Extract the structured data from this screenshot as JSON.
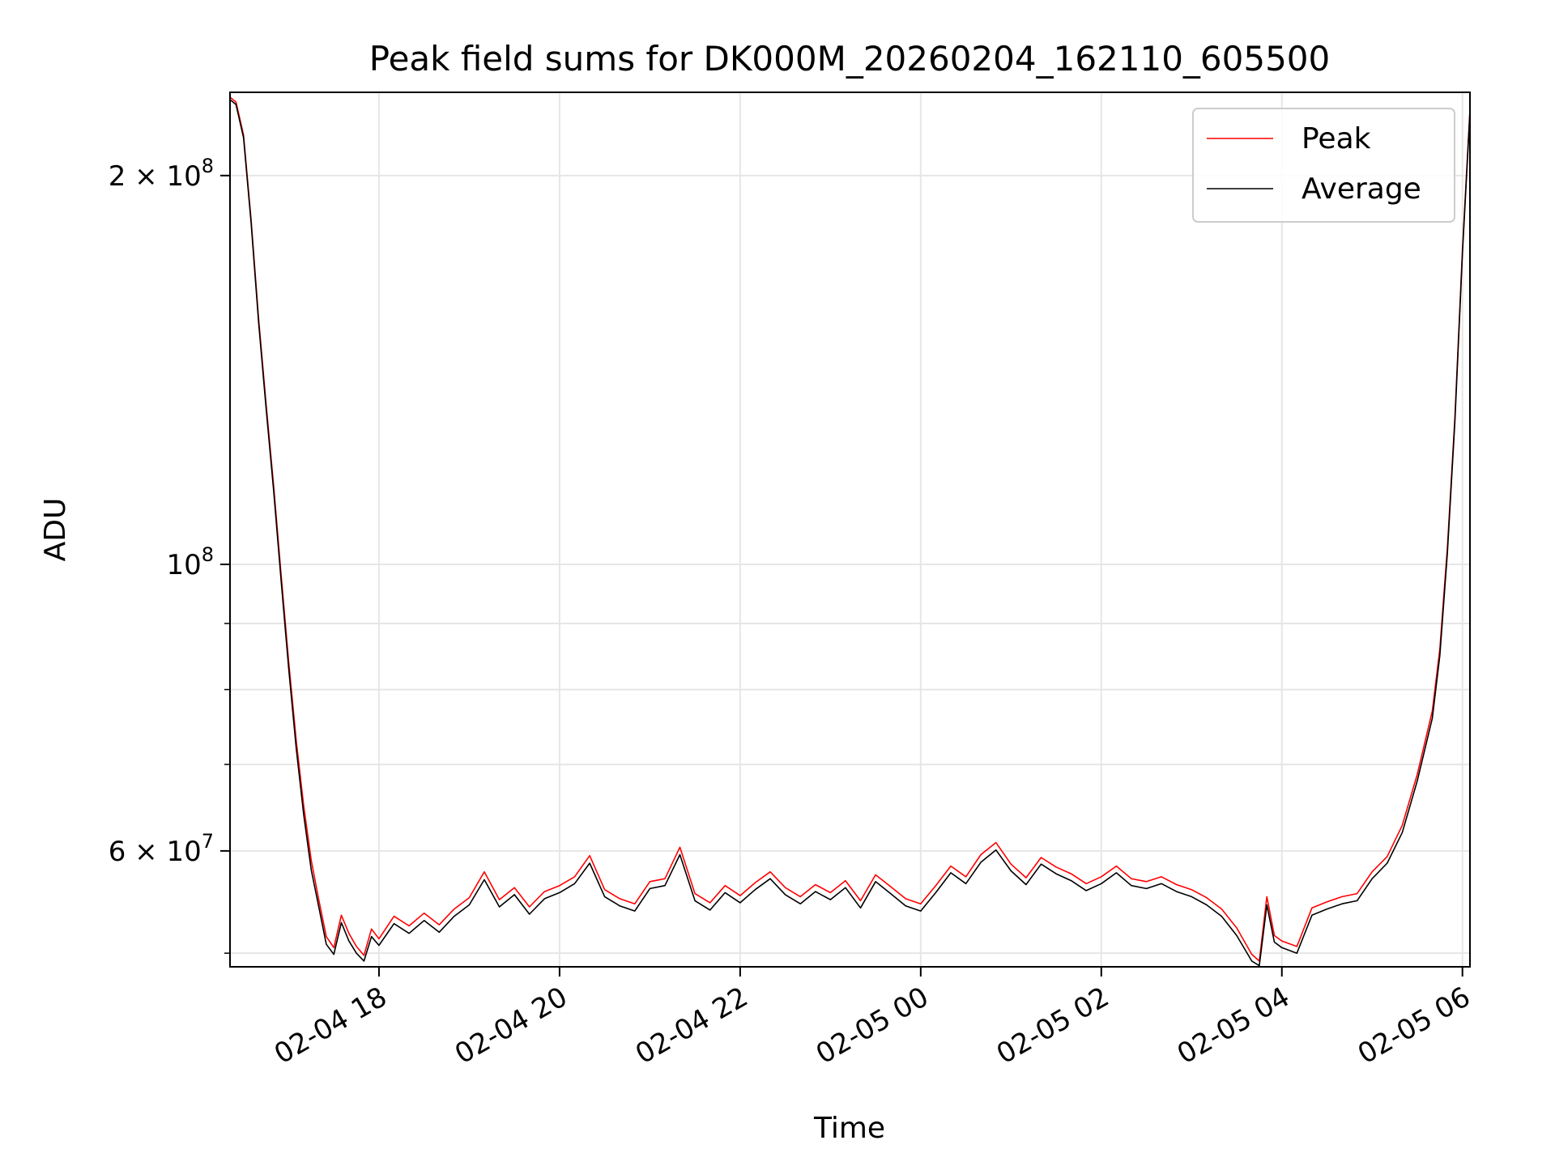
{
  "chart_data": {
    "type": "line",
    "title": "Peak field sums for DK000M_20260204_162110_605500",
    "xlabel": "Time",
    "ylabel": "ADU",
    "yscale": "log",
    "xlim": [
      "2026-02-04T16:21",
      "2026-02-05T06:05"
    ],
    "ylim": [
      48800000,
      232000000
    ],
    "grid": true,
    "legend_position": "upper right",
    "x_ticks": [
      {
        "t": "2026-02-04T18:00",
        "label": "02-04 18"
      },
      {
        "t": "2026-02-04T20:00",
        "label": "02-04 20"
      },
      {
        "t": "2026-02-04T22:00",
        "label": "02-04 22"
      },
      {
        "t": "2026-02-05T00:00",
        "label": "02-05 00"
      },
      {
        "t": "2026-02-05T02:00",
        "label": "02-05 02"
      },
      {
        "t": "2026-02-05T04:00",
        "label": "02-05 04"
      },
      {
        "t": "2026-02-05T06:00",
        "label": "02-05 06"
      }
    ],
    "y_ticks": [
      {
        "value": 200000000,
        "base": "2 × 10",
        "exp": "8"
      },
      {
        "value": 100000000,
        "base": "10",
        "exp": "8"
      },
      {
        "value": 60000000,
        "base": "6 × 10",
        "exp": "7"
      }
    ],
    "y_minor_ticks": [
      50000000,
      70000000,
      80000000,
      90000000
    ],
    "colors": {
      "peak": "#ff0000",
      "average": "#000000"
    },
    "series": [
      {
        "name": "Peak",
        "color": "#ff0000",
        "points": [
          [
            "2026-02-04T16:21",
            230000000
          ],
          [
            "2026-02-04T16:25",
            228000000
          ],
          [
            "2026-02-04T16:30",
            215000000
          ],
          [
            "2026-02-04T16:35",
            185000000
          ],
          [
            "2026-02-04T16:40",
            155000000
          ],
          [
            "2026-02-04T16:45",
            133000000
          ],
          [
            "2026-02-04T16:50",
            115000000
          ],
          [
            "2026-02-04T16:55",
            98000000
          ],
          [
            "2026-02-04T17:00",
            84000000
          ],
          [
            "2026-02-04T17:05",
            73000000
          ],
          [
            "2026-02-04T17:10",
            65000000
          ],
          [
            "2026-02-04T17:15",
            59000000
          ],
          [
            "2026-02-04T17:20",
            55000000
          ],
          [
            "2026-02-04T17:25",
            51500000
          ],
          [
            "2026-02-04T17:30",
            50500000
          ],
          [
            "2026-02-04T17:35",
            53500000
          ],
          [
            "2026-02-04T17:40",
            51800000
          ],
          [
            "2026-02-04T17:45",
            50600000
          ],
          [
            "2026-02-04T17:50",
            49800000
          ],
          [
            "2026-02-04T17:55",
            52200000
          ],
          [
            "2026-02-04T18:00",
            51300000
          ],
          [
            "2026-02-04T18:10",
            53400000
          ],
          [
            "2026-02-04T18:20",
            52500000
          ],
          [
            "2026-02-04T18:30",
            53700000
          ],
          [
            "2026-02-04T18:40",
            52600000
          ],
          [
            "2026-02-04T18:50",
            54100000
          ],
          [
            "2026-02-04T19:00",
            55200000
          ],
          [
            "2026-02-04T19:10",
            57800000
          ],
          [
            "2026-02-04T19:20",
            55000000
          ],
          [
            "2026-02-04T19:30",
            56200000
          ],
          [
            "2026-02-04T19:40",
            54300000
          ],
          [
            "2026-02-04T19:50",
            55800000
          ],
          [
            "2026-02-04T20:00",
            56400000
          ],
          [
            "2026-02-04T20:10",
            57300000
          ],
          [
            "2026-02-04T20:20",
            59500000
          ],
          [
            "2026-02-04T20:30",
            56000000
          ],
          [
            "2026-02-04T20:40",
            55100000
          ],
          [
            "2026-02-04T20:50",
            54600000
          ],
          [
            "2026-02-04T21:00",
            56800000
          ],
          [
            "2026-02-04T21:10",
            57100000
          ],
          [
            "2026-02-04T21:20",
            60400000
          ],
          [
            "2026-02-04T21:30",
            55600000
          ],
          [
            "2026-02-04T21:40",
            54700000
          ],
          [
            "2026-02-04T21:50",
            56400000
          ],
          [
            "2026-02-04T22:00",
            55400000
          ],
          [
            "2026-02-04T22:10",
            56700000
          ],
          [
            "2026-02-04T22:20",
            57800000
          ],
          [
            "2026-02-04T22:30",
            56200000
          ],
          [
            "2026-02-04T22:40",
            55300000
          ],
          [
            "2026-02-04T22:50",
            56500000
          ],
          [
            "2026-02-04T23:00",
            55700000
          ],
          [
            "2026-02-04T23:10",
            56900000
          ],
          [
            "2026-02-04T23:20",
            54900000
          ],
          [
            "2026-02-04T23:30",
            57500000
          ],
          [
            "2026-02-04T23:40",
            56300000
          ],
          [
            "2026-02-04T23:50",
            55100000
          ],
          [
            "2026-02-05T00:00",
            54600000
          ],
          [
            "2026-02-05T00:10",
            56400000
          ],
          [
            "2026-02-05T00:20",
            58400000
          ],
          [
            "2026-02-05T00:30",
            57300000
          ],
          [
            "2026-02-05T00:40",
            59600000
          ],
          [
            "2026-02-05T00:50",
            60900000
          ],
          [
            "2026-02-05T01:00",
            58600000
          ],
          [
            "2026-02-05T01:10",
            57200000
          ],
          [
            "2026-02-05T01:20",
            59300000
          ],
          [
            "2026-02-05T01:30",
            58300000
          ],
          [
            "2026-02-05T01:40",
            57600000
          ],
          [
            "2026-02-05T01:50",
            56600000
          ],
          [
            "2026-02-05T02:00",
            57300000
          ],
          [
            "2026-02-05T02:10",
            58400000
          ],
          [
            "2026-02-05T02:20",
            57100000
          ],
          [
            "2026-02-05T02:30",
            56800000
          ],
          [
            "2026-02-05T02:40",
            57300000
          ],
          [
            "2026-02-05T02:50",
            56500000
          ],
          [
            "2026-02-05T03:00",
            56000000
          ],
          [
            "2026-02-05T03:10",
            55200000
          ],
          [
            "2026-02-05T03:20",
            54100000
          ],
          [
            "2026-02-05T03:30",
            52300000
          ],
          [
            "2026-02-05T03:40",
            49900000
          ],
          [
            "2026-02-05T03:45",
            49300000
          ],
          [
            "2026-02-05T03:50",
            55300000
          ],
          [
            "2026-02-05T03:55",
            51600000
          ],
          [
            "2026-02-05T04:00",
            51100000
          ],
          [
            "2026-02-05T04:10",
            50600000
          ],
          [
            "2026-02-05T04:20",
            54200000
          ],
          [
            "2026-02-05T04:30",
            54800000
          ],
          [
            "2026-02-05T04:40",
            55300000
          ],
          [
            "2026-02-05T04:50",
            55600000
          ],
          [
            "2026-02-05T05:00",
            57800000
          ],
          [
            "2026-02-05T05:10",
            59400000
          ],
          [
            "2026-02-05T05:20",
            62800000
          ],
          [
            "2026-02-05T05:30",
            68800000
          ],
          [
            "2026-02-05T05:40",
            77000000
          ],
          [
            "2026-02-05T05:45",
            86000000
          ],
          [
            "2026-02-05T05:50",
            103000000
          ],
          [
            "2026-02-05T05:55",
            130000000
          ],
          [
            "2026-02-05T06:00",
            175000000
          ],
          [
            "2026-02-05T06:05",
            225000000
          ]
        ]
      },
      {
        "name": "Average",
        "color": "#000000",
        "points": [
          [
            "2026-02-04T16:21",
            229000000
          ],
          [
            "2026-02-04T16:25",
            227000000
          ],
          [
            "2026-02-04T16:30",
            214000000
          ],
          [
            "2026-02-04T16:35",
            184000000
          ],
          [
            "2026-02-04T16:40",
            154000000
          ],
          [
            "2026-02-04T16:45",
            132000000
          ],
          [
            "2026-02-04T16:50",
            114000000
          ],
          [
            "2026-02-04T16:55",
            97000000
          ],
          [
            "2026-02-04T17:00",
            83000000
          ],
          [
            "2026-02-04T17:05",
            72000000
          ],
          [
            "2026-02-04T17:10",
            64000000
          ],
          [
            "2026-02-04T17:15",
            58000000
          ],
          [
            "2026-02-04T17:20",
            54300000
          ],
          [
            "2026-02-04T17:25",
            50800000
          ],
          [
            "2026-02-04T17:30",
            49900000
          ],
          [
            "2026-02-04T17:35",
            52800000
          ],
          [
            "2026-02-04T17:40",
            51100000
          ],
          [
            "2026-02-04T17:45",
            50000000
          ],
          [
            "2026-02-04T17:50",
            49300000
          ],
          [
            "2026-02-04T17:55",
            51500000
          ],
          [
            "2026-02-04T18:00",
            50700000
          ],
          [
            "2026-02-04T18:10",
            52700000
          ],
          [
            "2026-02-04T18:20",
            51800000
          ],
          [
            "2026-02-04T18:30",
            53000000
          ],
          [
            "2026-02-04T18:40",
            51900000
          ],
          [
            "2026-02-04T18:50",
            53400000
          ],
          [
            "2026-02-04T19:00",
            54500000
          ],
          [
            "2026-02-04T19:10",
            57000000
          ],
          [
            "2026-02-04T19:20",
            54300000
          ],
          [
            "2026-02-04T19:30",
            55500000
          ],
          [
            "2026-02-04T19:40",
            53600000
          ],
          [
            "2026-02-04T19:50",
            55100000
          ],
          [
            "2026-02-04T20:00",
            55700000
          ],
          [
            "2026-02-04T20:10",
            56600000
          ],
          [
            "2026-02-04T20:20",
            58700000
          ],
          [
            "2026-02-04T20:30",
            55300000
          ],
          [
            "2026-02-04T20:40",
            54400000
          ],
          [
            "2026-02-04T20:50",
            53900000
          ],
          [
            "2026-02-04T21:00",
            56100000
          ],
          [
            "2026-02-04T21:10",
            56400000
          ],
          [
            "2026-02-04T21:20",
            59600000
          ],
          [
            "2026-02-04T21:30",
            54900000
          ],
          [
            "2026-02-04T21:40",
            54000000
          ],
          [
            "2026-02-04T21:50",
            55700000
          ],
          [
            "2026-02-04T22:00",
            54700000
          ],
          [
            "2026-02-04T22:10",
            56000000
          ],
          [
            "2026-02-04T22:20",
            57100000
          ],
          [
            "2026-02-04T22:30",
            55500000
          ],
          [
            "2026-02-04T22:40",
            54600000
          ],
          [
            "2026-02-04T22:50",
            55800000
          ],
          [
            "2026-02-04T23:00",
            55000000
          ],
          [
            "2026-02-04T23:10",
            56200000
          ],
          [
            "2026-02-04T23:20",
            54200000
          ],
          [
            "2026-02-04T23:30",
            56800000
          ],
          [
            "2026-02-04T23:40",
            55600000
          ],
          [
            "2026-02-04T23:50",
            54400000
          ],
          [
            "2026-02-05T00:00",
            53900000
          ],
          [
            "2026-02-05T00:10",
            55700000
          ],
          [
            "2026-02-05T00:20",
            57700000
          ],
          [
            "2026-02-05T00:30",
            56600000
          ],
          [
            "2026-02-05T00:40",
            58800000
          ],
          [
            "2026-02-05T00:50",
            60100000
          ],
          [
            "2026-02-05T01:00",
            57900000
          ],
          [
            "2026-02-05T01:10",
            56500000
          ],
          [
            "2026-02-05T01:20",
            58600000
          ],
          [
            "2026-02-05T01:30",
            57600000
          ],
          [
            "2026-02-05T01:40",
            56900000
          ],
          [
            "2026-02-05T01:50",
            55900000
          ],
          [
            "2026-02-05T02:00",
            56600000
          ],
          [
            "2026-02-05T02:10",
            57700000
          ],
          [
            "2026-02-05T02:20",
            56400000
          ],
          [
            "2026-02-05T02:30",
            56100000
          ],
          [
            "2026-02-05T02:40",
            56600000
          ],
          [
            "2026-02-05T02:50",
            55800000
          ],
          [
            "2026-02-05T03:00",
            55300000
          ],
          [
            "2026-02-05T03:10",
            54500000
          ],
          [
            "2026-02-05T03:20",
            53400000
          ],
          [
            "2026-02-05T03:30",
            51600000
          ],
          [
            "2026-02-05T03:40",
            49300000
          ],
          [
            "2026-02-05T03:45",
            48900000
          ],
          [
            "2026-02-05T03:50",
            54500000
          ],
          [
            "2026-02-05T03:55",
            51000000
          ],
          [
            "2026-02-05T04:00",
            50500000
          ],
          [
            "2026-02-05T04:10",
            50000000
          ],
          [
            "2026-02-05T04:20",
            53500000
          ],
          [
            "2026-02-05T04:30",
            54100000
          ],
          [
            "2026-02-05T04:40",
            54600000
          ],
          [
            "2026-02-05T04:50",
            54900000
          ],
          [
            "2026-02-05T05:00",
            57100000
          ],
          [
            "2026-02-05T05:10",
            58700000
          ],
          [
            "2026-02-05T05:20",
            62000000
          ],
          [
            "2026-02-05T05:30",
            68000000
          ],
          [
            "2026-02-05T05:40",
            76000000
          ],
          [
            "2026-02-05T05:45",
            85000000
          ],
          [
            "2026-02-05T05:50",
            102000000
          ],
          [
            "2026-02-05T05:55",
            129000000
          ],
          [
            "2026-02-05T06:00",
            174000000
          ],
          [
            "2026-02-05T06:05",
            224000000
          ]
        ]
      }
    ]
  }
}
